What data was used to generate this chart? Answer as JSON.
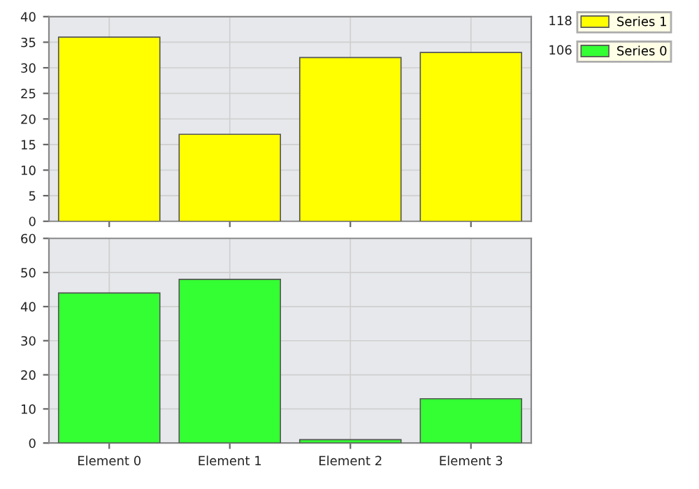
{
  "chart_data": [
    {
      "type": "bar",
      "categories": [
        null,
        null,
        null,
        null
      ],
      "series": [
        {
          "name": "Series 1",
          "color": "#ffff00",
          "values": [
            36,
            17,
            32,
            33
          ]
        }
      ],
      "ylim": [
        0,
        40
      ],
      "yticks": [
        0,
        5,
        10,
        15,
        20,
        25,
        30,
        35,
        40
      ],
      "grid": true,
      "tick_labels": "y",
      "legend": "right",
      "annotations": [
        "118"
      ]
    },
    {
      "type": "bar",
      "categories": [
        "Element 0",
        "Element 1",
        "Element 2",
        "Element 3"
      ],
      "series": [
        {
          "name": "Series 0",
          "color": "#33ff33",
          "values": [
            44,
            48,
            1,
            13
          ]
        }
      ],
      "ylim": [
        0,
        60
      ],
      "yticks": [
        0,
        10,
        20,
        30,
        40,
        50,
        60
      ],
      "grid": true,
      "legend": "right",
      "annotations": [
        "106"
      ]
    }
  ]
}
